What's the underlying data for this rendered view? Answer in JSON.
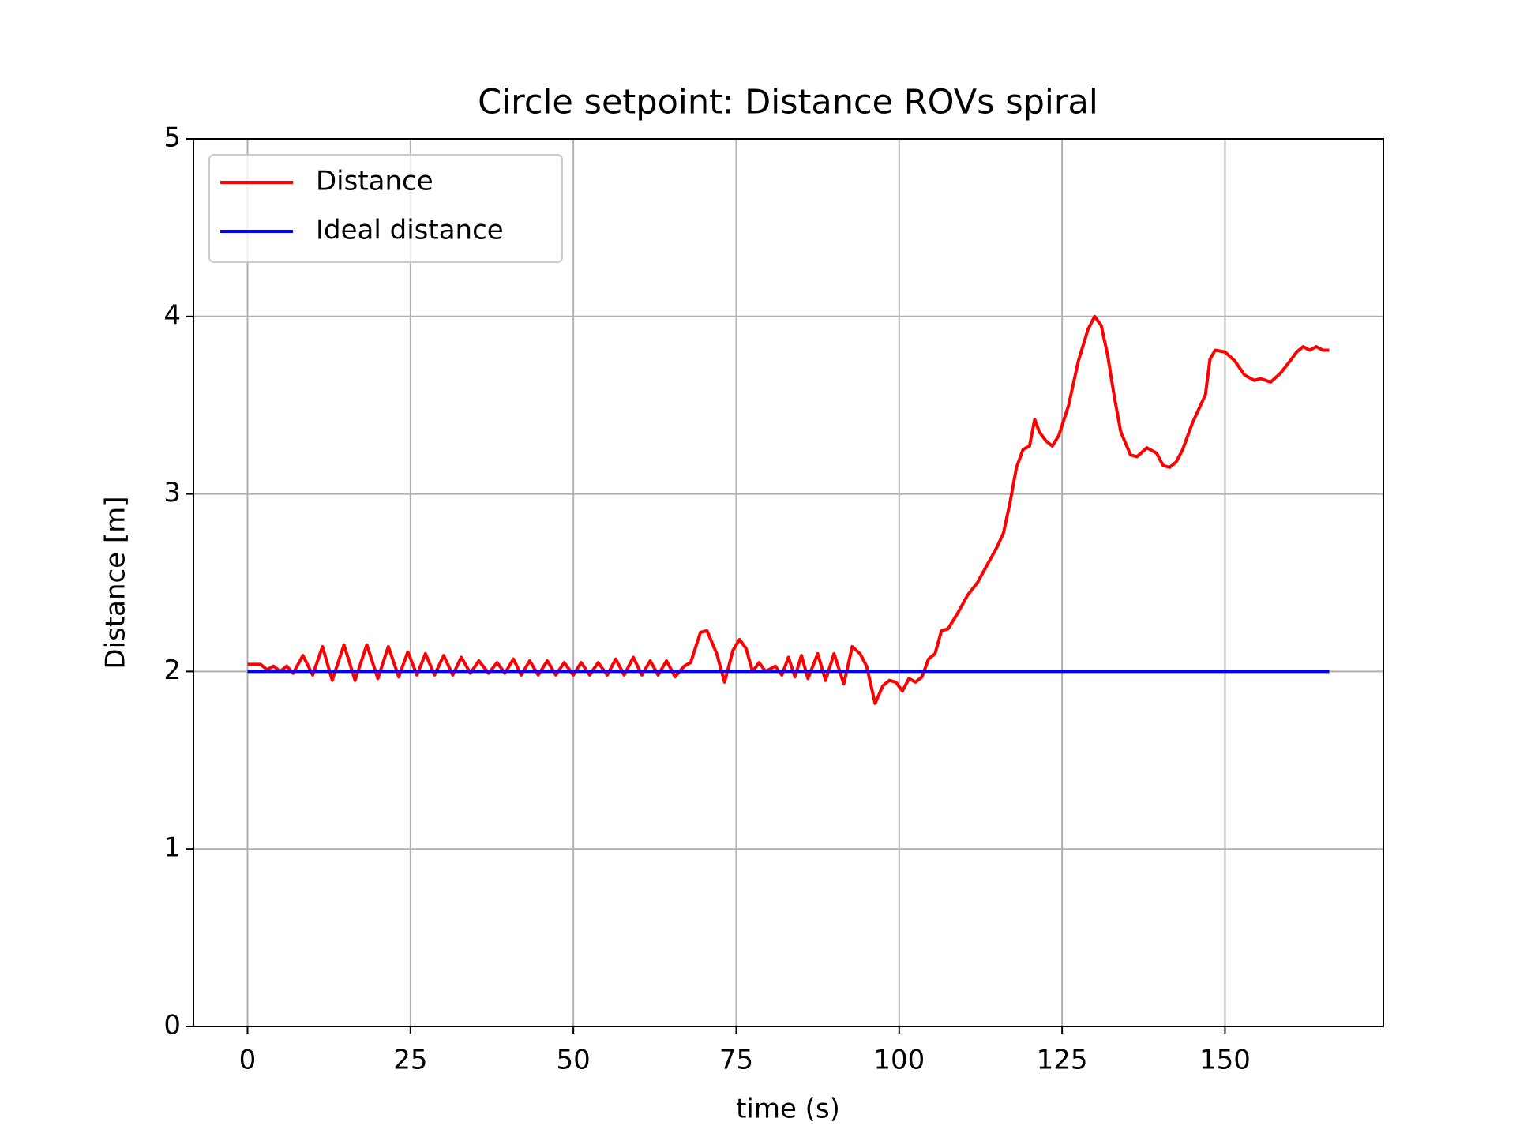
{
  "chart_data": {
    "type": "line",
    "title": "Circle setpoint: Distance ROVs spiral",
    "x_label": "time (s)",
    "y_label": "Distance [m]",
    "xlim": [
      -8.3,
      174.3
    ],
    "ylim": [
      0,
      5
    ],
    "xticks": [
      0,
      25,
      50,
      75,
      100,
      125,
      150
    ],
    "yticks": [
      0,
      1,
      2,
      3,
      4,
      5
    ],
    "grid": true,
    "legend": "upper left",
    "series": [
      {
        "name": "Distance",
        "color": "#ff0000",
        "x": [
          0,
          2,
          3,
          4,
          5,
          6,
          7,
          8.5,
          10,
          11.5,
          13,
          14.8,
          16.5,
          18.3,
          20,
          21.6,
          23.2,
          24.6,
          26,
          27.3,
          28.7,
          30.1,
          31.5,
          32.8,
          34.2,
          35.5,
          37,
          38.3,
          39.5,
          40.8,
          42,
          43.3,
          44.6,
          46,
          47.3,
          48.6,
          50,
          51.2,
          52.5,
          53.8,
          55.2,
          56.5,
          57.8,
          59.2,
          60.5,
          61.8,
          63,
          64.3,
          65.6,
          67,
          68,
          69.5,
          70.5,
          72,
          73.2,
          74.5,
          75.5,
          76.5,
          77.5,
          78.5,
          79.5,
          81,
          82,
          83,
          84,
          85,
          86,
          87.5,
          88.7,
          90,
          91.5,
          92.8,
          94,
          95,
          96.3,
          97.5,
          98.5,
          99.5,
          100.5,
          101.5,
          102.5,
          103.5,
          104.5,
          105.5,
          106.5,
          107.5,
          109,
          110.5,
          112,
          113.5,
          115,
          116,
          117,
          118,
          119,
          120,
          120.8,
          121.5,
          122.5,
          123.5,
          124.5,
          126,
          127.5,
          129,
          130,
          131,
          132,
          133,
          134,
          135.5,
          136.5,
          138,
          139.5,
          140.5,
          141.5,
          142.5,
          143.5,
          145,
          147,
          147.7,
          148.5,
          150,
          151.5,
          153,
          154.5,
          155.5,
          157,
          158.5,
          160,
          161,
          162,
          163,
          164,
          165,
          166
        ],
        "values": [
          2.04,
          2.04,
          2.01,
          2.03,
          2.0,
          2.03,
          1.99,
          2.09,
          1.98,
          2.14,
          1.95,
          2.15,
          1.95,
          2.15,
          1.96,
          2.14,
          1.97,
          2.11,
          1.98,
          2.1,
          1.98,
          2.09,
          1.98,
          2.08,
          1.99,
          2.06,
          1.99,
          2.05,
          1.99,
          2.07,
          1.98,
          2.06,
          1.98,
          2.06,
          1.98,
          2.05,
          1.98,
          2.05,
          1.98,
          2.05,
          1.98,
          2.07,
          1.98,
          2.08,
          1.98,
          2.06,
          1.98,
          2.06,
          1.97,
          2.03,
          2.05,
          2.22,
          2.23,
          2.1,
          1.94,
          2.12,
          2.18,
          2.13,
          2.0,
          2.05,
          2.0,
          2.03,
          1.98,
          2.08,
          1.97,
          2.09,
          1.96,
          2.1,
          1.95,
          2.1,
          1.93,
          2.14,
          2.1,
          2.03,
          1.82,
          1.92,
          1.95,
          1.94,
          1.89,
          1.96,
          1.94,
          1.97,
          2.07,
          2.1,
          2.23,
          2.24,
          2.33,
          2.43,
          2.5,
          2.6,
          2.7,
          2.78,
          2.95,
          3.15,
          3.25,
          3.27,
          3.42,
          3.35,
          3.3,
          3.27,
          3.33,
          3.5,
          3.75,
          3.93,
          4.0,
          3.95,
          3.78,
          3.55,
          3.35,
          3.22,
          3.21,
          3.26,
          3.23,
          3.16,
          3.15,
          3.18,
          3.25,
          3.4,
          3.56,
          3.76,
          3.81,
          3.8,
          3.75,
          3.67,
          3.64,
          3.65,
          3.63,
          3.68,
          3.75,
          3.8,
          3.83,
          3.81,
          3.83,
          3.81,
          3.81
        ]
      },
      {
        "name": "Ideal distance",
        "color": "#0000ff",
        "x": [
          0,
          166
        ],
        "values": [
          2,
          2
        ]
      }
    ]
  }
}
